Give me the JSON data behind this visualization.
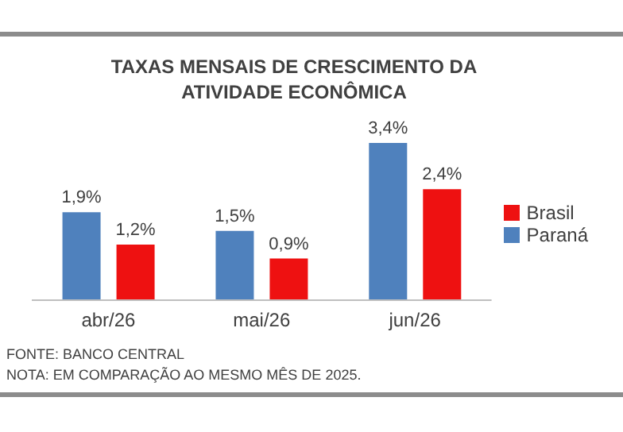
{
  "chart_data": {
    "type": "bar",
    "title": "TAXAS MENSAIS DE CRESCIMENTO  DA ATIVIDADE ECONÔMICA",
    "categories": [
      "abr/26",
      "mai/26",
      "jun/26"
    ],
    "series": [
      {
        "name": "Paraná",
        "color": "#4f81bd",
        "values": [
          1.9,
          1.5,
          3.4
        ],
        "value_labels": [
          "1,9%",
          "1,5%",
          "3,4%"
        ]
      },
      {
        "name": "Brasil",
        "color": "#ee1111",
        "values": [
          1.2,
          0.9,
          2.4
        ],
        "value_labels": [
          "1,2%",
          "0,9%",
          "2,4%"
        ]
      }
    ],
    "legend": "right",
    "grid": false,
    "annotations": [
      "FONTE: BANCO CENTRAL",
      "NOTA: EM COMPARAÇÃO AO MESMO MÊS DE 2025."
    ]
  }
}
